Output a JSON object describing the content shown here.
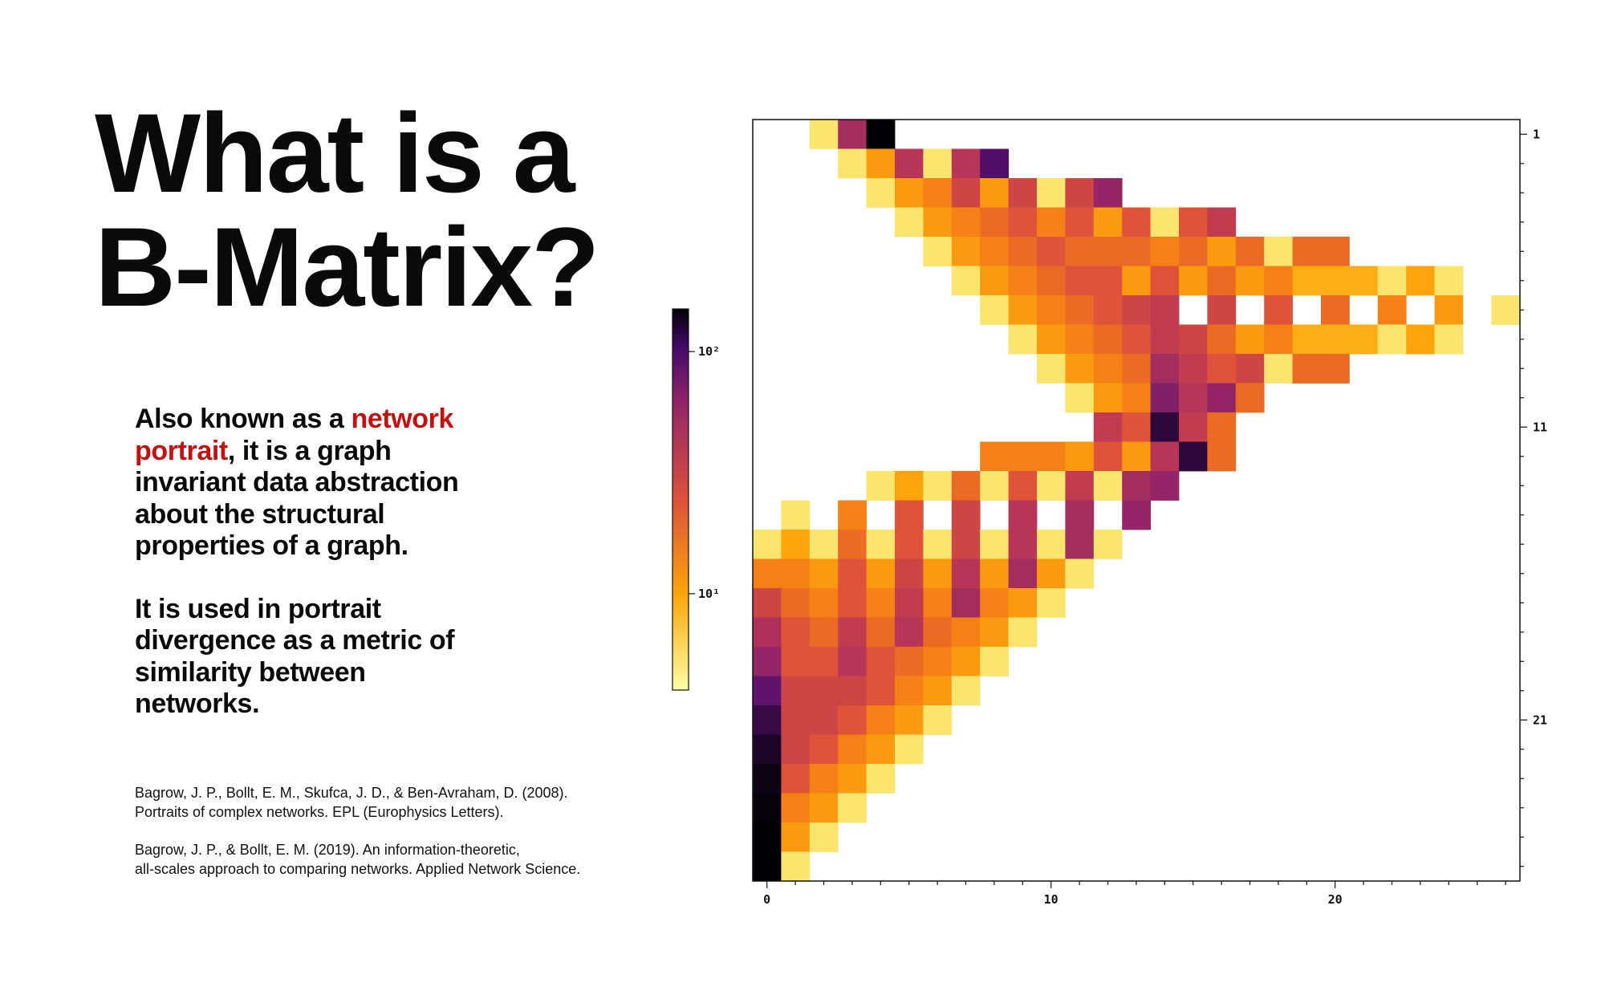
{
  "title": {
    "line1": "What is a",
    "line2": "B-Matrix?"
  },
  "description": {
    "p1_highlight": "network portrait",
    "p1_before": "Also known as a ",
    "p1_after": ", it is a graph invariant data abstraction about the structural properties of a graph.",
    "p2": "It is used in portrait divergence as a metric of similarity between networks."
  },
  "references": [
    {
      "line1": "Bagrow, J. P., Bollt, E. M., Skufca, J. D., & Ben-Avraham, D. (2008).",
      "line2": "Portraits of complex networks. EPL (Europhysics Letters)."
    },
    {
      "line1": "Bagrow, J. P., & Bollt, E. M. (2019). An information-theoretic,",
      "line2": "all-scales approach to comparing networks. Applied Network Science."
    }
  ],
  "colors": {
    "highlight": "#c60f0f",
    "colormap": "inferno_r",
    "missing": "#ffffff"
  },
  "chart_data": {
    "type": "heatmap",
    "colormap": "inferno (reversed)",
    "scale": "log",
    "x_axis": {
      "ticks": [
        0,
        10,
        20
      ],
      "tick_labels": [
        "0",
        "10",
        "20"
      ],
      "range": [
        0,
        26
      ]
    },
    "y_axis": {
      "ticks": [
        1,
        11,
        21
      ],
      "tick_labels": [
        "1",
        "11",
        "21"
      ],
      "range": [
        1,
        26
      ],
      "side": "right",
      "inverted": true
    },
    "colorbar": {
      "tick_labels": [
        "10¹",
        "10²"
      ],
      "tick_values": [
        10,
        100
      ],
      "range": [
        4,
        150
      ],
      "placement": "left"
    },
    "missing_value": null,
    "rows": [
      [
        null,
        null,
        5,
        50,
        150,
        null,
        null,
        null,
        null,
        null,
        null,
        null,
        null,
        null,
        null,
        null,
        null,
        null,
        null,
        null,
        null,
        null,
        null,
        null,
        null,
        null,
        null
      ],
      [
        null,
        null,
        null,
        5,
        11,
        40,
        5,
        40,
        100,
        null,
        null,
        null,
        null,
        null,
        null,
        null,
        null,
        null,
        null,
        null,
        null,
        null,
        null,
        null,
        null,
        null,
        null
      ],
      [
        null,
        null,
        null,
        null,
        5,
        11,
        14,
        30,
        11,
        30,
        5,
        30,
        60,
        null,
        null,
        null,
        null,
        null,
        null,
        null,
        null,
        null,
        null,
        null,
        null,
        null,
        null
      ],
      [
        null,
        null,
        null,
        null,
        null,
        5,
        11,
        14,
        18,
        24,
        14,
        24,
        11,
        24,
        5,
        24,
        35,
        null,
        null,
        null,
        null,
        null,
        null,
        null,
        null,
        null,
        null
      ],
      [
        null,
        null,
        null,
        null,
        null,
        null,
        5,
        11,
        14,
        18,
        24,
        18,
        18,
        18,
        14,
        18,
        11,
        18,
        5,
        18,
        18,
        null,
        null,
        null,
        null,
        null,
        null
      ],
      [
        null,
        null,
        null,
        null,
        null,
        null,
        null,
        5,
        11,
        14,
        18,
        24,
        24,
        11,
        24,
        11,
        18,
        11,
        14,
        9,
        9,
        9,
        5,
        10,
        5,
        null,
        null
      ],
      [
        null,
        null,
        null,
        null,
        null,
        null,
        null,
        null,
        5,
        11,
        14,
        18,
        24,
        30,
        35,
        null,
        30,
        null,
        24,
        null,
        18,
        null,
        14,
        null,
        11,
        null,
        5
      ],
      [
        null,
        null,
        null,
        null,
        null,
        null,
        null,
        null,
        null,
        5,
        11,
        14,
        18,
        24,
        35,
        30,
        18,
        11,
        14,
        9,
        9,
        9,
        5,
        10,
        5,
        null,
        null
      ],
      [
        null,
        null,
        null,
        null,
        null,
        null,
        null,
        null,
        null,
        null,
        5,
        11,
        14,
        18,
        50,
        35,
        24,
        30,
        5,
        18,
        18,
        null,
        null,
        null,
        null,
        null,
        null
      ],
      [
        null,
        null,
        null,
        null,
        null,
        null,
        null,
        null,
        null,
        null,
        null,
        5,
        11,
        14,
        70,
        40,
        60,
        18,
        null,
        null,
        null,
        null,
        null,
        null,
        null,
        null,
        null
      ],
      [
        null,
        null,
        null,
        null,
        null,
        null,
        null,
        null,
        null,
        null,
        null,
        null,
        35,
        24,
        120,
        35,
        18,
        null,
        null,
        null,
        null,
        null,
        null,
        null,
        null,
        null,
        null
      ],
      [
        null,
        null,
        null,
        null,
        null,
        null,
        null,
        null,
        14,
        14,
        14,
        11,
        24,
        11,
        40,
        120,
        18,
        null,
        null,
        null,
        null,
        null,
        null,
        null,
        null,
        null,
        null
      ],
      [
        null,
        null,
        null,
        null,
        5,
        10,
        5,
        18,
        5,
        24,
        5,
        35,
        5,
        50,
        60,
        null,
        null,
        null,
        null,
        null,
        null,
        null,
        null,
        null,
        null,
        null,
        null
      ],
      [
        null,
        5,
        null,
        14,
        null,
        24,
        null,
        30,
        null,
        40,
        null,
        50,
        null,
        60,
        null,
        null,
        null,
        null,
        null,
        null,
        null,
        null,
        null,
        null,
        null,
        null,
        null
      ],
      [
        5,
        10,
        5,
        18,
        5,
        24,
        5,
        30,
        5,
        40,
        5,
        50,
        5,
        null,
        null,
        null,
        null,
        null,
        null,
        null,
        null,
        null,
        null,
        null,
        null,
        null,
        null
      ],
      [
        14,
        14,
        11,
        24,
        11,
        30,
        11,
        40,
        11,
        50,
        11,
        5,
        null,
        null,
        null,
        null,
        null,
        null,
        null,
        null,
        null,
        null,
        null,
        null,
        null,
        null,
        null
      ],
      [
        30,
        18,
        14,
        24,
        14,
        35,
        14,
        50,
        14,
        11,
        5,
        null,
        null,
        null,
        null,
        null,
        null,
        null,
        null,
        null,
        null,
        null,
        null,
        null,
        null,
        null,
        null
      ],
      [
        45,
        24,
        18,
        35,
        18,
        40,
        18,
        14,
        11,
        5,
        null,
        null,
        null,
        null,
        null,
        null,
        null,
        null,
        null,
        null,
        null,
        null,
        null,
        null,
        null,
        null,
        null
      ],
      [
        60,
        24,
        24,
        40,
        24,
        18,
        14,
        11,
        5,
        null,
        null,
        null,
        null,
        null,
        null,
        null,
        null,
        null,
        null,
        null,
        null,
        null,
        null,
        null,
        null,
        null,
        null
      ],
      [
        90,
        30,
        30,
        30,
        24,
        14,
        11,
        5,
        null,
        null,
        null,
        null,
        null,
        null,
        null,
        null,
        null,
        null,
        null,
        null,
        null,
        null,
        null,
        null,
        null,
        null,
        null
      ],
      [
        115,
        30,
        30,
        24,
        14,
        11,
        5,
        null,
        null,
        null,
        null,
        null,
        null,
        null,
        null,
        null,
        null,
        null,
        null,
        null,
        null,
        null,
        null,
        null,
        null,
        null,
        null
      ],
      [
        130,
        30,
        24,
        14,
        11,
        5,
        null,
        null,
        null,
        null,
        null,
        null,
        null,
        null,
        null,
        null,
        null,
        null,
        null,
        null,
        null,
        null,
        null,
        null,
        null,
        null,
        null
      ],
      [
        140,
        24,
        14,
        11,
        5,
        null,
        null,
        null,
        null,
        null,
        null,
        null,
        null,
        null,
        null,
        null,
        null,
        null,
        null,
        null,
        null,
        null,
        null,
        null,
        null,
        null,
        null
      ],
      [
        145,
        14,
        11,
        5,
        null,
        null,
        null,
        null,
        null,
        null,
        null,
        null,
        null,
        null,
        null,
        null,
        null,
        null,
        null,
        null,
        null,
        null,
        null,
        null,
        null,
        null,
        null
      ],
      [
        150,
        11,
        5,
        null,
        null,
        null,
        null,
        null,
        null,
        null,
        null,
        null,
        null,
        null,
        null,
        null,
        null,
        null,
        null,
        null,
        null,
        null,
        null,
        null,
        null,
        null,
        null
      ],
      [
        150,
        5,
        null,
        null,
        null,
        null,
        null,
        null,
        null,
        null,
        null,
        null,
        null,
        null,
        null,
        null,
        null,
        null,
        null,
        null,
        null,
        null,
        null,
        null,
        null,
        null,
        null
      ]
    ]
  }
}
